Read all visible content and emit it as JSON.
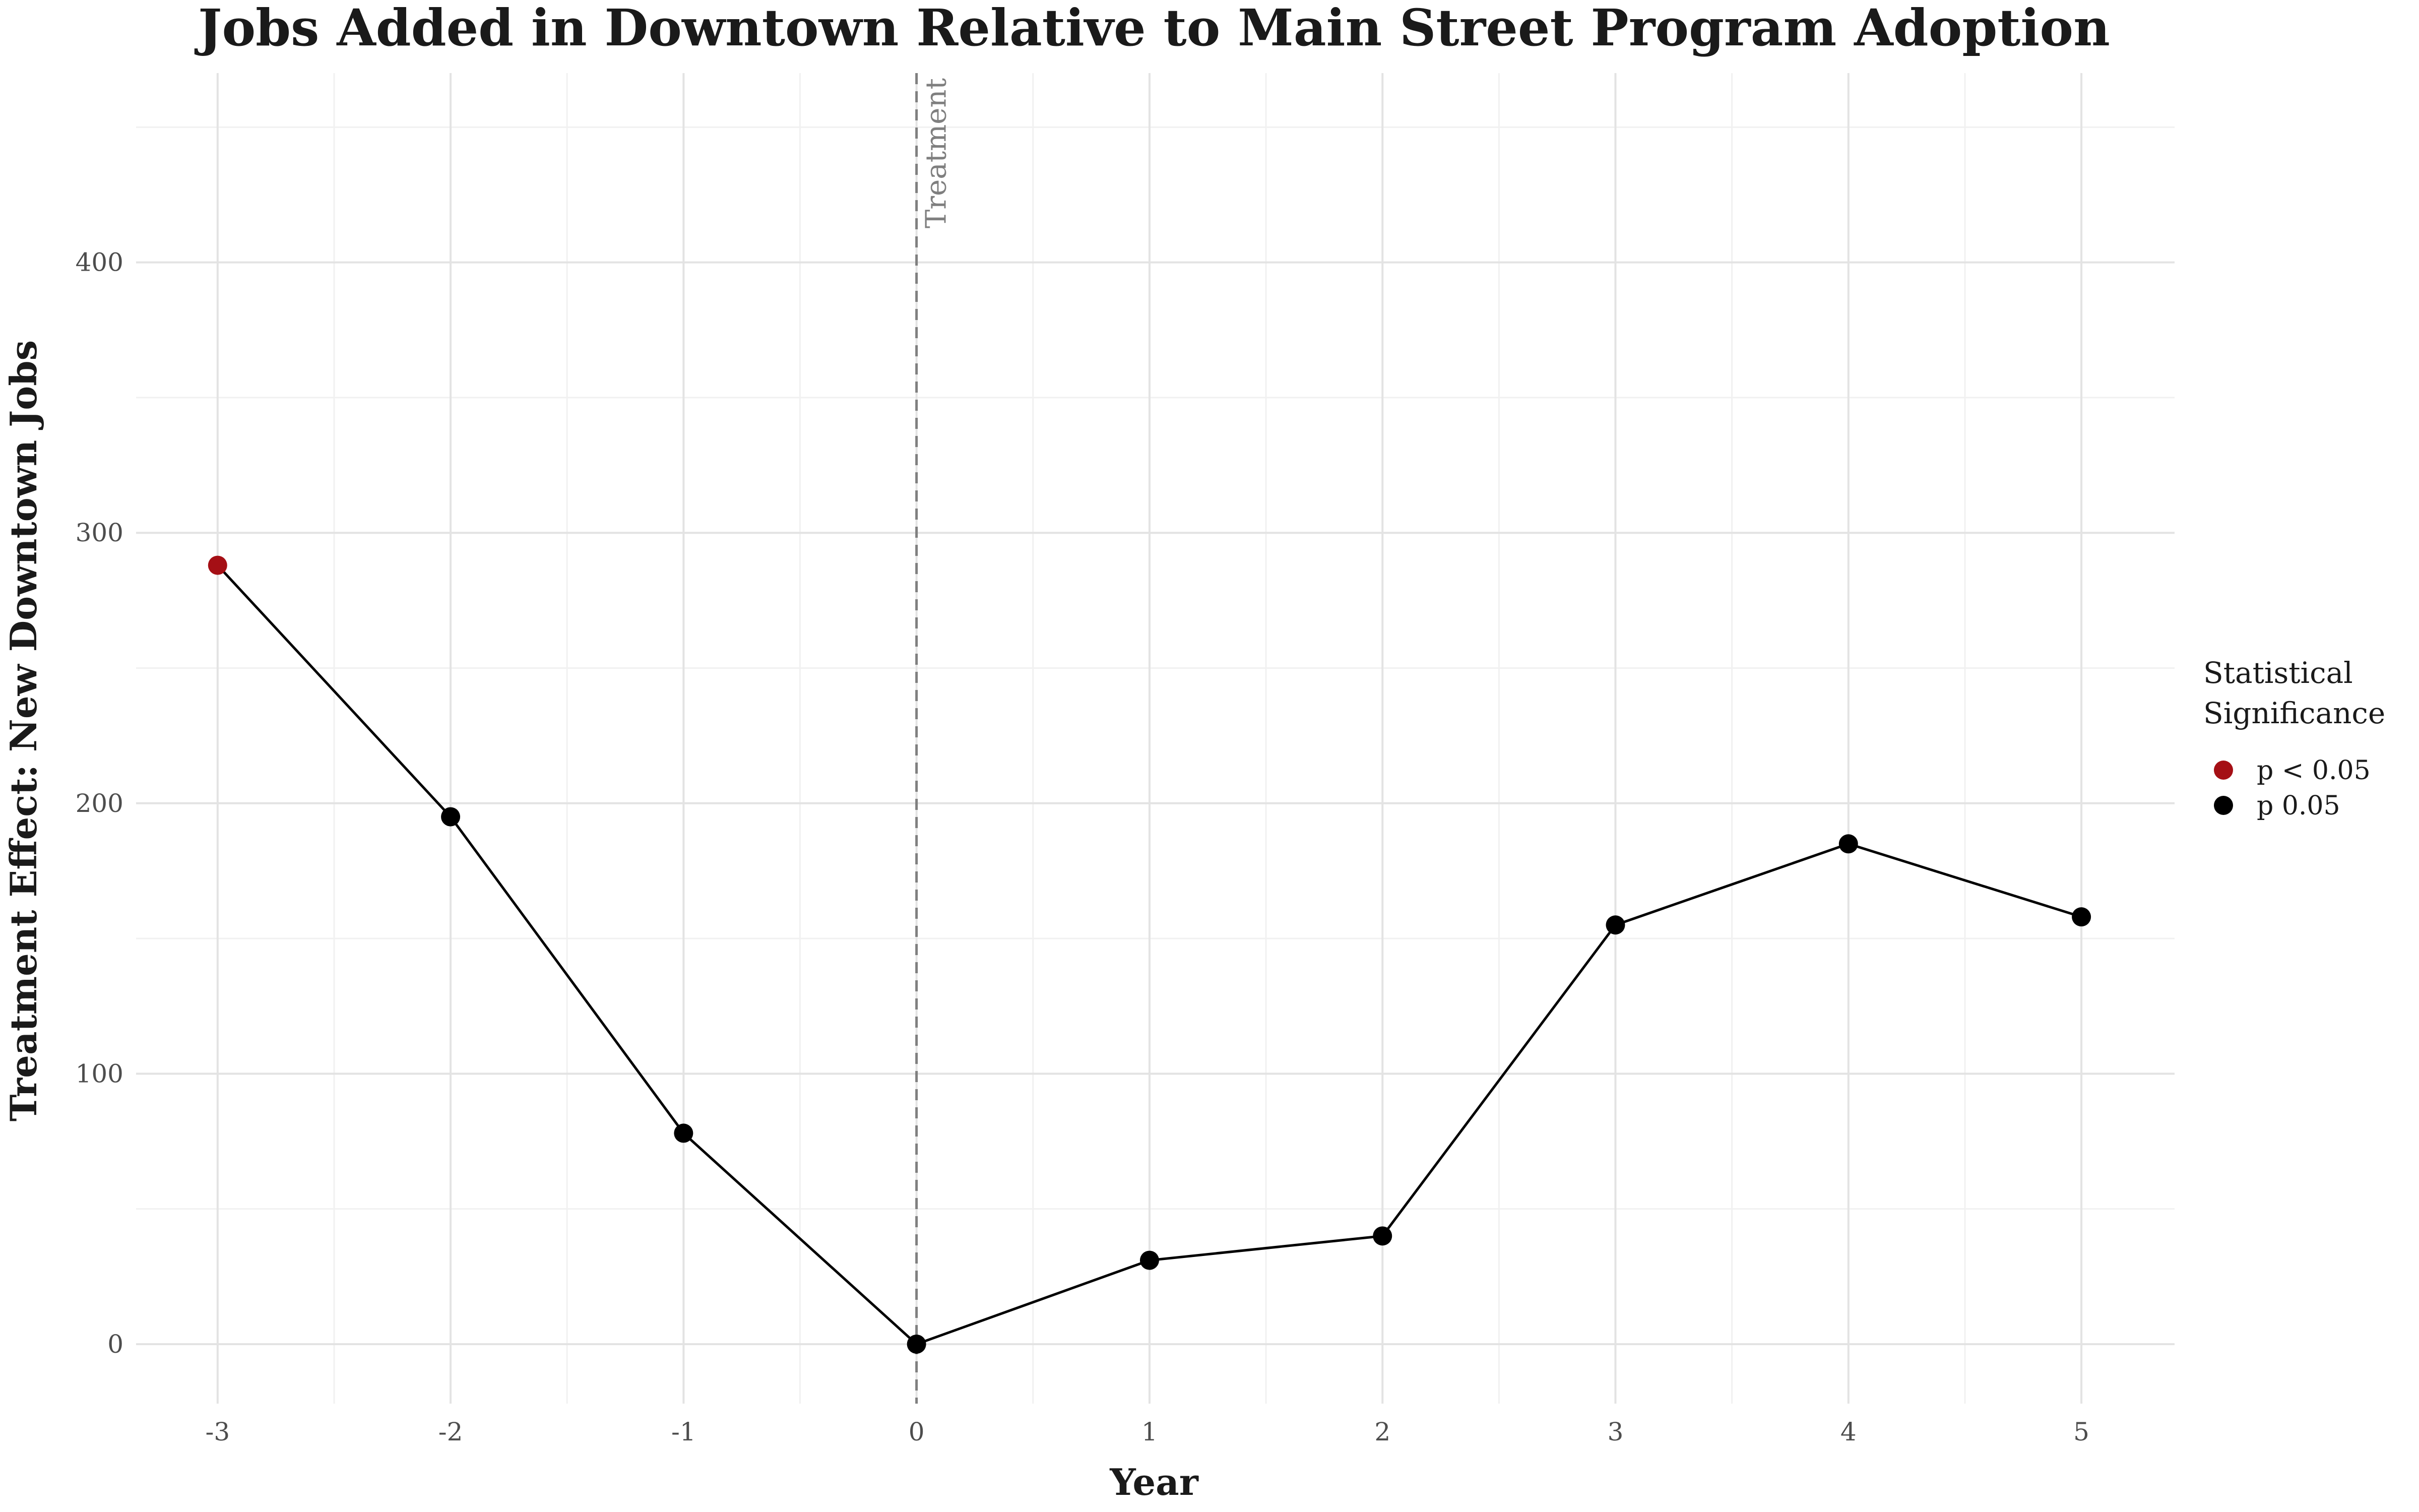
{
  "chart_data": {
    "type": "line",
    "title": "Jobs Added in Downtown Relative to Main Street Program Adoption",
    "xlabel": "Year",
    "ylabel": "Treatment Effect: New Downtown Jobs",
    "x": [
      -3,
      -2,
      -1,
      0,
      1,
      2,
      3,
      4,
      5
    ],
    "y": [
      288,
      195,
      78,
      0,
      31,
      40,
      155,
      185,
      158
    ],
    "significance": [
      "p < 0.05",
      "p   0.05",
      "p   0.05",
      "p   0.05",
      "p   0.05",
      "p   0.05",
      "p   0.05",
      "p   0.05",
      "p   0.05"
    ],
    "xlim": [
      -3.35,
      5.4
    ],
    "ylim": [
      -22,
      470
    ],
    "xticks": [
      -3,
      -2,
      -1,
      0,
      1,
      2,
      3,
      4,
      5
    ],
    "yticks": [
      0,
      100,
      200,
      300,
      400
    ],
    "grid": true,
    "line_color": "#000000",
    "annotation": {
      "x": 0,
      "label": "Treatment",
      "line_color": "#7f7f7f"
    },
    "legend": {
      "title_lines": [
        "Statistical",
        "Significance"
      ],
      "placement": "right",
      "items": [
        {
          "label": "p < 0.05",
          "color": "#a50f15"
        },
        {
          "label": "p   0.05",
          "color": "#000000"
        }
      ]
    }
  }
}
